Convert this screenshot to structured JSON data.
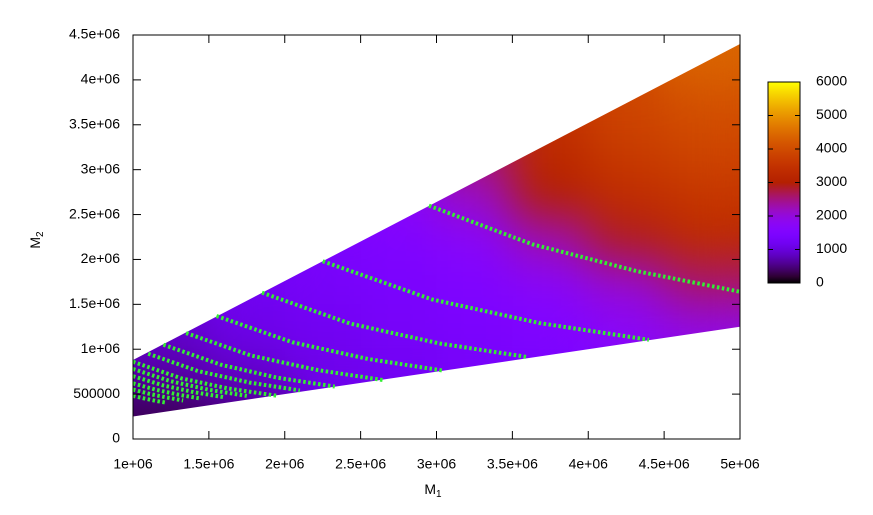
{
  "chart_data": {
    "type": "heatmap",
    "xlabel": {
      "text": "M",
      "sub": "1"
    },
    "ylabel": {
      "text": "M",
      "sub": "2"
    },
    "xlim": [
      1000000,
      5000000
    ],
    "ylim": [
      0,
      4500000
    ],
    "xticks": [
      {
        "value": 1000000,
        "label": "1e+06"
      },
      {
        "value": 1500000,
        "label": "1.5e+06"
      },
      {
        "value": 2000000,
        "label": "2e+06"
      },
      {
        "value": 2500000,
        "label": "2.5e+06"
      },
      {
        "value": 3000000,
        "label": "3e+06"
      },
      {
        "value": 3500000,
        "label": "3.5e+06"
      },
      {
        "value": 4000000,
        "label": "4e+06"
      },
      {
        "value": 4500000,
        "label": "4.5e+06"
      },
      {
        "value": 5000000,
        "label": "5e+06"
      }
    ],
    "yticks": [
      0,
      500000,
      {
        "value": 1000000,
        "label": "1e+06"
      },
      {
        "value": 1500000,
        "label": "1.5e+06"
      },
      {
        "value": 2000000,
        "label": "2e+06"
      },
      {
        "value": 2500000,
        "label": "2.5e+06"
      },
      {
        "value": 3000000,
        "label": "3e+06"
      },
      {
        "value": 3500000,
        "label": "3.5e+06"
      },
      {
        "value": 4000000,
        "label": "4e+06"
      },
      {
        "value": 4500000,
        "label": "4.5e+06"
      }
    ],
    "cblim": [
      0,
      6000
    ],
    "cbticks": [
      0,
      1000,
      2000,
      3000,
      4000,
      5000,
      6000
    ],
    "palette": "rgbformulae 7,5,15",
    "boundary": {
      "x": [
        1000000,
        5000000,
        5000000,
        1000000
      ],
      "y": [
        250000,
        1250000,
        4400000,
        880000
      ]
    },
    "x": [
      1250000,
      1750000,
      2250000,
      2750000,
      3250000,
      3750000,
      4250000,
      4750000
    ],
    "y": [
      250000,
      750000,
      1250000,
      1750000,
      2250000,
      2750000,
      3250000,
      3750000,
      4250000
    ],
    "cell_size": [
      500000,
      500000
    ],
    "z": [
      [
        300,
        500,
        null,
        null,
        null,
        null,
        null,
        null
      ],
      [
        700,
        900,
        1100,
        1200,
        1300,
        1400,
        null,
        null
      ],
      [
        900,
        1100,
        1200,
        1300,
        1400,
        1500,
        1700,
        1900
      ],
      [
        null,
        1200,
        1300,
        1400,
        1500,
        1700,
        2100,
        2600
      ],
      [
        null,
        null,
        1400,
        1500,
        1700,
        2300,
        2900,
        3300
      ],
      [
        null,
        null,
        null,
        1700,
        2200,
        3000,
        3400,
        3600
      ],
      [
        null,
        null,
        null,
        null,
        2600,
        3300,
        3700,
        3900
      ],
      [
        null,
        null,
        null,
        null,
        null,
        3500,
        3900,
        4100
      ],
      [
        null,
        null,
        null,
        null,
        null,
        null,
        null,
        4400
      ]
    ],
    "point_color": "#33ee33",
    "series": [
      {
        "x": [
          2950000,
          3630000,
          4320000,
          5000000
        ],
        "values": [
          2600000,
          2170000,
          1870000,
          1640000
        ]
      },
      {
        "x": [
          2250000,
          2970000,
          3680000,
          4400000
        ],
        "values": [
          1980000,
          1555000,
          1291000,
          1105000
        ]
      },
      {
        "x": [
          1850000,
          2430000,
          3020000,
          3600000
        ],
        "values": [
          1630000,
          1286000,
          1064000,
          913000
        ]
      },
      {
        "x": [
          1550000,
          2050000,
          2550000,
          3050000
        ],
        "values": [
          1370000,
          1078000,
          891000,
          760000
        ]
      },
      {
        "x": [
          1350000,
          1780000,
          2220000,
          2650000
        ],
        "values": [
          1180000,
          929000,
          767000,
          656000
        ]
      },
      {
        "x": [
          1200000,
          1580000,
          1950000,
          2330000
        ],
        "values": [
          1050000,
          827000,
          683000,
          584000
        ]
      },
      {
        "x": [
          1100000,
          1430000,
          1770000,
          2100000
        ],
        "values": [
          950000,
          756000,
          628000,
          541000
        ]
      },
      {
        "x": [
          1000000,
          1320000,
          1630000,
          1950000
        ],
        "values": [
          860000,
          675000,
          562000,
          481000
        ]
      },
      {
        "x": [
          1000000,
          1250000,
          1500000,
          1750000
        ],
        "values": [
          780000,
          643000,
          548000,
          480000
        ]
      },
      {
        "x": [
          1000000,
          1200000,
          1400000,
          1600000
        ],
        "values": [
          700000,
          597000,
          522000,
          465000
        ]
      },
      {
        "x": [
          1000000,
          1150000,
          1300000,
          1450000
        ],
        "values": [
          620000,
          549000,
          494000,
          449000
        ]
      },
      {
        "x": [
          1000000,
          1110000,
          1220000,
          1330000
        ],
        "values": [
          550000,
          502000,
          463000,
          429000
        ]
      },
      {
        "x": [
          1000000,
          1070000,
          1150000,
          1220000
        ],
        "values": [
          480000,
          453000,
          425000,
          404000
        ]
      }
    ]
  }
}
